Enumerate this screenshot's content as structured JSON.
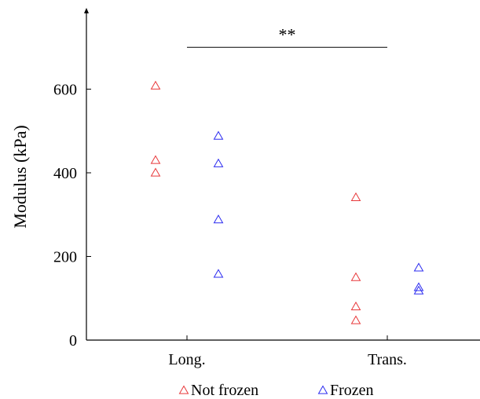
{
  "chart_data": {
    "type": "scatter",
    "title": "",
    "xlabel": "",
    "ylabel": "Modulus (kPa)",
    "categories": [
      "Long.",
      "Trans."
    ],
    "ylim": [
      0,
      720
    ],
    "yticks": [
      0,
      200,
      400,
      600
    ],
    "series": [
      {
        "name": "Not frozen",
        "color": "#e8393b",
        "marker": "triangle-open",
        "points": [
          {
            "category": "Long.",
            "y": 608
          },
          {
            "category": "Long.",
            "y": 430
          },
          {
            "category": "Long.",
            "y": 400
          },
          {
            "category": "Trans.",
            "y": 341
          },
          {
            "category": "Trans.",
            "y": 150
          },
          {
            "category": "Trans.",
            "y": 80
          },
          {
            "category": "Trans.",
            "y": 47
          }
        ]
      },
      {
        "name": "Frozen",
        "color": "#2c2cf0",
        "marker": "triangle-open",
        "points": [
          {
            "category": "Long.",
            "y": 488
          },
          {
            "category": "Long.",
            "y": 422
          },
          {
            "category": "Long.",
            "y": 288
          },
          {
            "category": "Long.",
            "y": 158
          },
          {
            "category": "Trans.",
            "y": 173
          },
          {
            "category": "Trans.",
            "y": 126
          },
          {
            "category": "Trans.",
            "y": 118
          }
        ]
      }
    ],
    "annotations": [
      {
        "type": "significance-bar",
        "from": "Long.",
        "to": "Trans.",
        "y": 700,
        "label": "**"
      }
    ],
    "legend": {
      "position": "bottom",
      "orientation": "horizontal"
    },
    "grid": false
  }
}
